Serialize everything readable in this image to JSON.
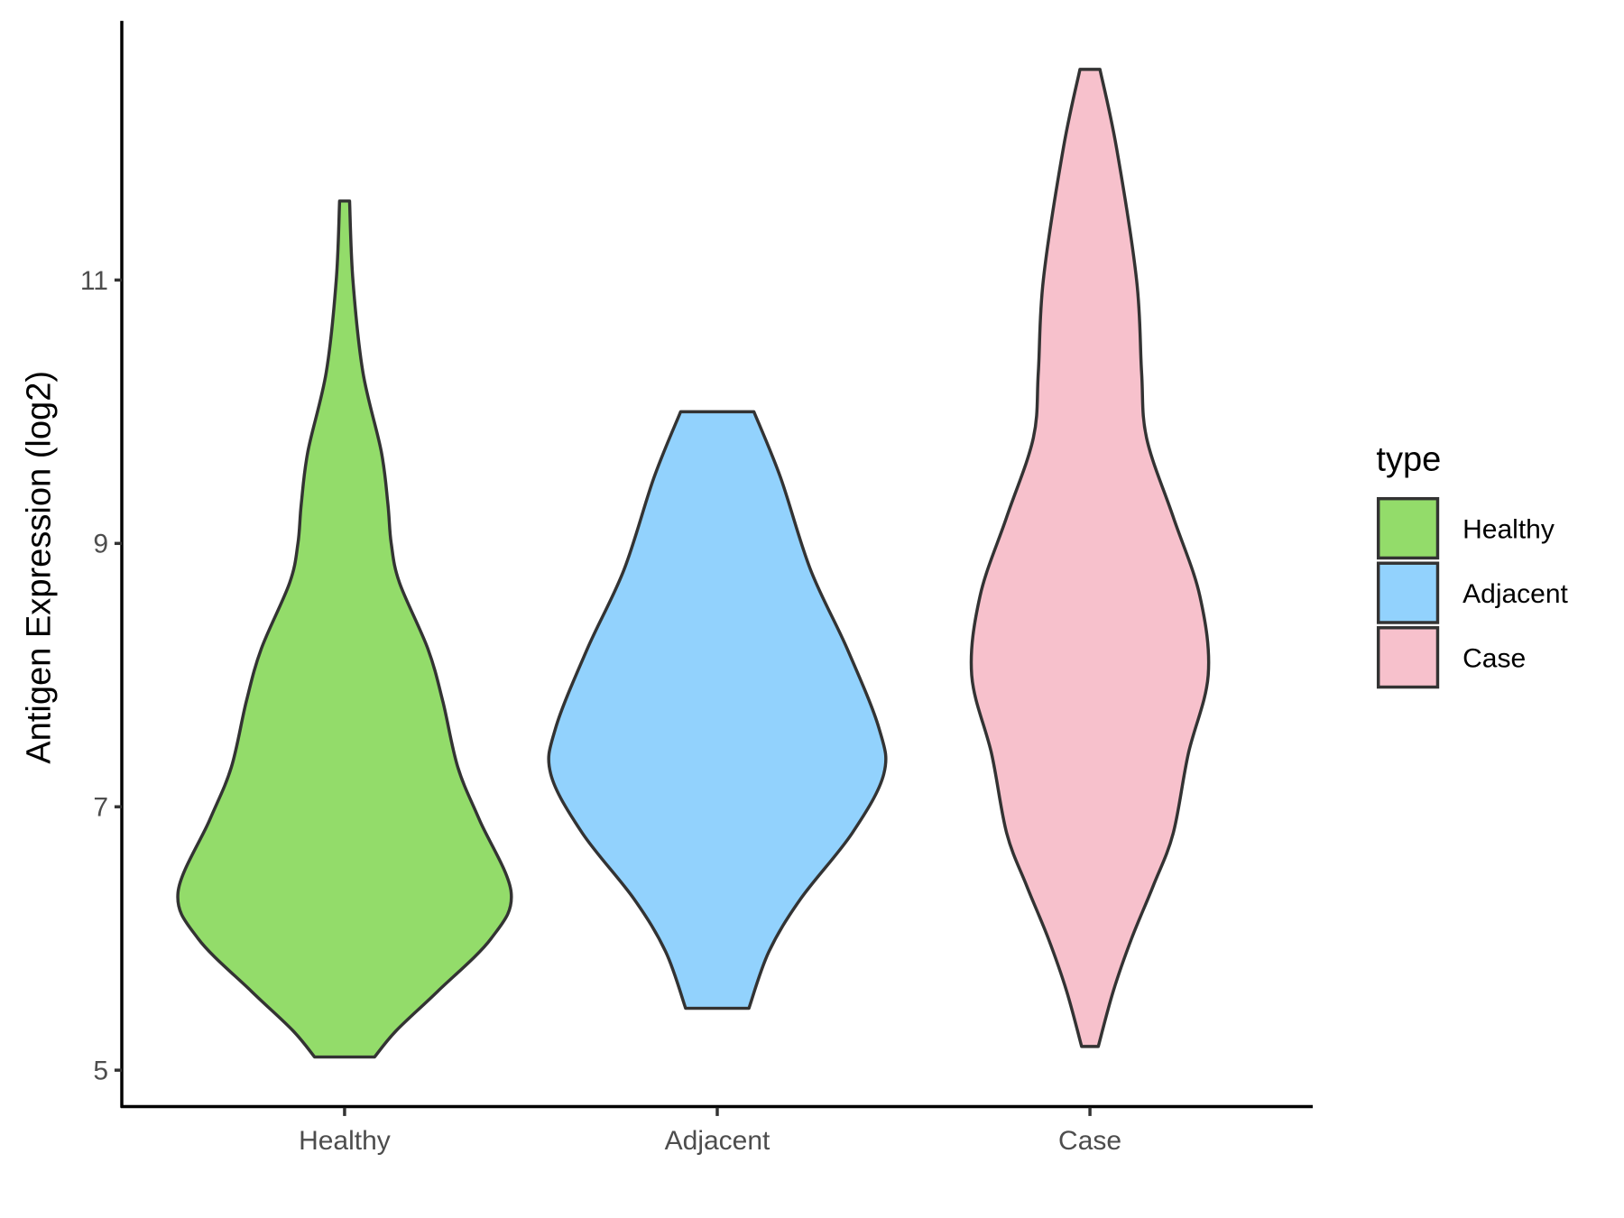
{
  "chart_data": {
    "type": "violin",
    "title": "",
    "xlabel": "",
    "ylabel": "Antigen Expression (log2)",
    "categories": [
      "Healthy",
      "Adjacent",
      "Case"
    ],
    "yticks": [
      5,
      7,
      9,
      11
    ],
    "ytick_labels": [
      "5",
      "7",
      "9",
      "11"
    ],
    "ylim": [
      4.73,
      13.0
    ],
    "legend": {
      "title": "type",
      "position": "right",
      "entries": [
        "Healthy",
        "Adjacent",
        "Case"
      ]
    },
    "colors": {
      "Healthy": "#93dc6a",
      "Adjacent": "#92d2fd",
      "Case": "#f7c1cc",
      "outline": "#333333"
    },
    "series": [
      {
        "name": "Healthy",
        "min": 5.1,
        "max": 11.6,
        "profile": [
          [
            11.6,
            0.03
          ],
          [
            11.0,
            0.05
          ],
          [
            10.3,
            0.11
          ],
          [
            9.7,
            0.22
          ],
          [
            9.3,
            0.26
          ],
          [
            9.0,
            0.28
          ],
          [
            8.7,
            0.33
          ],
          [
            8.2,
            0.5
          ],
          [
            7.8,
            0.59
          ],
          [
            7.3,
            0.68
          ],
          [
            6.9,
            0.81
          ],
          [
            6.35,
            1.0
          ],
          [
            6.0,
            0.88
          ],
          [
            5.6,
            0.56
          ],
          [
            5.3,
            0.31
          ],
          [
            5.1,
            0.18
          ]
        ]
      },
      {
        "name": "Adjacent",
        "min": 5.47,
        "max": 10.0,
        "profile": [
          [
            10.0,
            0.22
          ],
          [
            9.5,
            0.38
          ],
          [
            8.8,
            0.56
          ],
          [
            8.2,
            0.78
          ],
          [
            7.6,
            0.97
          ],
          [
            7.25,
            1.0
          ],
          [
            6.8,
            0.81
          ],
          [
            6.3,
            0.5
          ],
          [
            5.9,
            0.31
          ],
          [
            5.47,
            0.19
          ]
        ]
      },
      {
        "name": "Case",
        "min": 5.18,
        "max": 12.6,
        "profile": [
          [
            12.6,
            0.06
          ],
          [
            12.0,
            0.16
          ],
          [
            11.0,
            0.28
          ],
          [
            10.3,
            0.31
          ],
          [
            9.8,
            0.34
          ],
          [
            9.2,
            0.5
          ],
          [
            8.6,
            0.66
          ],
          [
            8.0,
            0.71
          ],
          [
            7.4,
            0.59
          ],
          [
            6.8,
            0.5
          ],
          [
            6.4,
            0.38
          ],
          [
            6.0,
            0.25
          ],
          [
            5.6,
            0.14
          ],
          [
            5.18,
            0.05
          ]
        ]
      }
    ]
  }
}
